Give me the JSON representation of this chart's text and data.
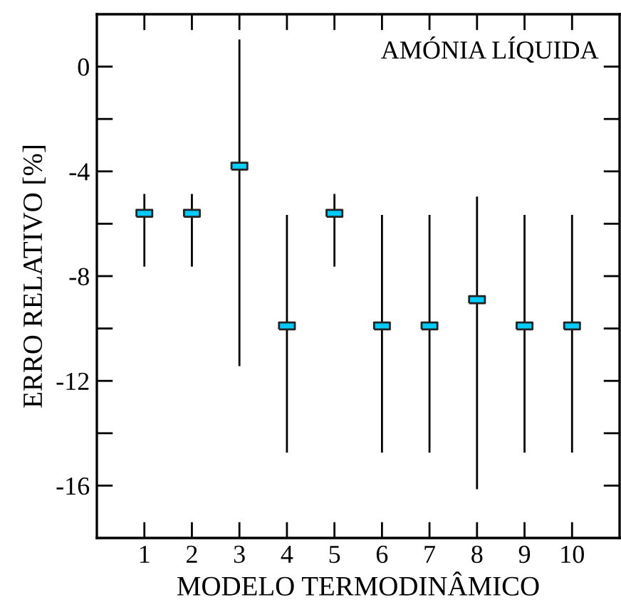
{
  "chart_data": {
    "type": "scatter",
    "xlabel": "MODELO TERMODINÂMICO",
    "ylabel": "ERRO RELATIVO [%]",
    "annotations": [
      "AMÓNIA LÍQUIDA"
    ],
    "x": [
      1,
      2,
      3,
      4,
      5,
      6,
      7,
      8,
      9,
      10
    ],
    "xlim": [
      0,
      11
    ],
    "xticks": [
      1,
      2,
      3,
      4,
      5,
      6,
      7,
      8,
      9,
      10
    ],
    "ylim": [
      -18,
      2
    ],
    "yticks": [
      0,
      {
        "value": -2,
        "label": null
      },
      -4,
      {
        "value": -6,
        "label": null
      },
      -8,
      {
        "value": -10,
        "label": null
      },
      -12,
      {
        "value": -14,
        "label": null
      },
      -16
    ],
    "series": [
      {
        "color": "#00ccff",
        "values": [
          -5.6,
          -5.6,
          -3.8,
          -9.9,
          -5.6,
          -9.9,
          -9.9,
          -8.9,
          -9.9,
          -9.9
        ],
        "errors": [
          [
            -7.6,
            -4.9
          ],
          [
            -7.6,
            -4.9
          ],
          [
            -11.4,
            1.0
          ],
          [
            -14.7,
            -5.7
          ],
          [
            -7.6,
            -4.9
          ],
          [
            -14.7,
            -5.7
          ],
          [
            -14.7,
            -5.7
          ],
          [
            -16.1,
            -5.0
          ],
          [
            -14.7,
            -5.7
          ],
          [
            -14.7,
            -5.7
          ]
        ]
      }
    ],
    "marker": "square",
    "grid": false
  }
}
